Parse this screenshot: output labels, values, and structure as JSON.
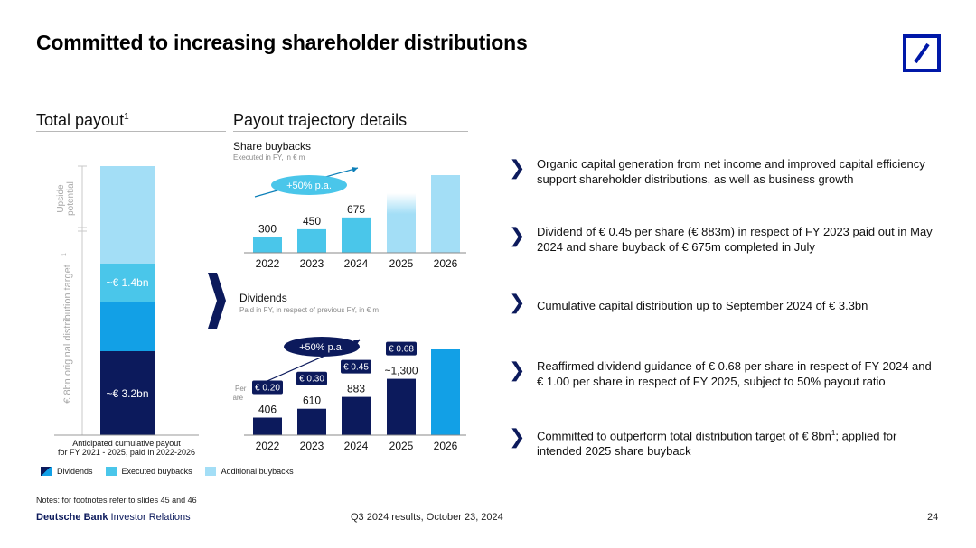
{
  "title": "Committed to increasing shareholder distributions",
  "left_panel": {
    "heading": "Total payout",
    "heading_sup": "1",
    "upside_label_1": "Upside",
    "upside_label_2": "potential",
    "target_label": "€ 8bn original distribution target",
    "target_sup": "1",
    "segment_buybacks_label": "~€ 1.4bn",
    "segment_dividends_label": "~€ 3.2bn",
    "caption_line1": "Anticipated cumulative payout",
    "caption_line2": "for FY 2021 - 2025, paid in 2022-2026",
    "colors": {
      "dividends": "#0c1a5c",
      "executed": "#12a0e6",
      "additional": "#a3def6",
      "executed_light": "#4ac6ea"
    }
  },
  "legend": {
    "dividends": "Dividends",
    "executed": "Executed buybacks",
    "additional": "Additional buybacks"
  },
  "right_panel": {
    "heading": "Payout trajectory details",
    "buybacks_title": "Share buybacks",
    "buybacks_sub": "Executed in FY, in € m",
    "buybacks_growth": "+50% p.a.",
    "dividends_title": "Dividends",
    "dividends_sub": "Paid in FY, in respect of previous FY, in € m",
    "dividends_growth": "+50% p.a.",
    "per_share_1": "Per",
    "per_share_2": "share"
  },
  "chart_data": [
    {
      "type": "bar",
      "title": "Share buybacks",
      "subtitle": "Executed in FY, in € m",
      "categories": [
        "2022",
        "2023",
        "2024",
        "2025",
        "2026"
      ],
      "values": [
        300,
        450,
        675,
        null,
        null
      ],
      "value_labels": [
        "300",
        "450",
        "675",
        "",
        ""
      ]
    },
    {
      "type": "bar",
      "title": "Dividends",
      "subtitle": "Paid in FY, in respect of previous FY, in € m",
      "categories": [
        "2022",
        "2023",
        "2024",
        "2025",
        "2026"
      ],
      "values": [
        406,
        610,
        883,
        1300,
        null
      ],
      "value_labels": [
        "406",
        "610",
        "883",
        "~1,300",
        ""
      ],
      "per_share_labels": [
        "€ 0.20",
        "€ 0.30",
        "€ 0.45",
        "€ 0.68",
        ""
      ]
    }
  ],
  "bullets": [
    {
      "text": "Organic capital generation from net income and improved capital efficiency support shareholder distributions, as well as business growth"
    },
    {
      "text": "Dividend of € 0.45 per share (€ 883m) in respect of FY 2023 paid out in May 2024 and share buyback of € 675m completed in July"
    },
    {
      "text": "Cumulative capital distribution up to September 2024 of € 3.3bn"
    },
    {
      "text": "Reaffirmed dividend guidance of € 0.68 per share in respect of FY 2024 and € 1.00 per share in respect of FY 2025, subject to 50% payout ratio"
    },
    {
      "text": "Committed to outperform total distribution target of € 8bn",
      "sup": "1",
      "tail": "; applied for intended 2025 share buyback"
    }
  ],
  "footer": {
    "notes": "Notes: for footnotes refer to slides 45 and 46",
    "brand_bold": "Deutsche Bank",
    "brand_rest": " Investor Relations",
    "center": "Q3 2024 results, October 23, 2024",
    "page": "24"
  }
}
